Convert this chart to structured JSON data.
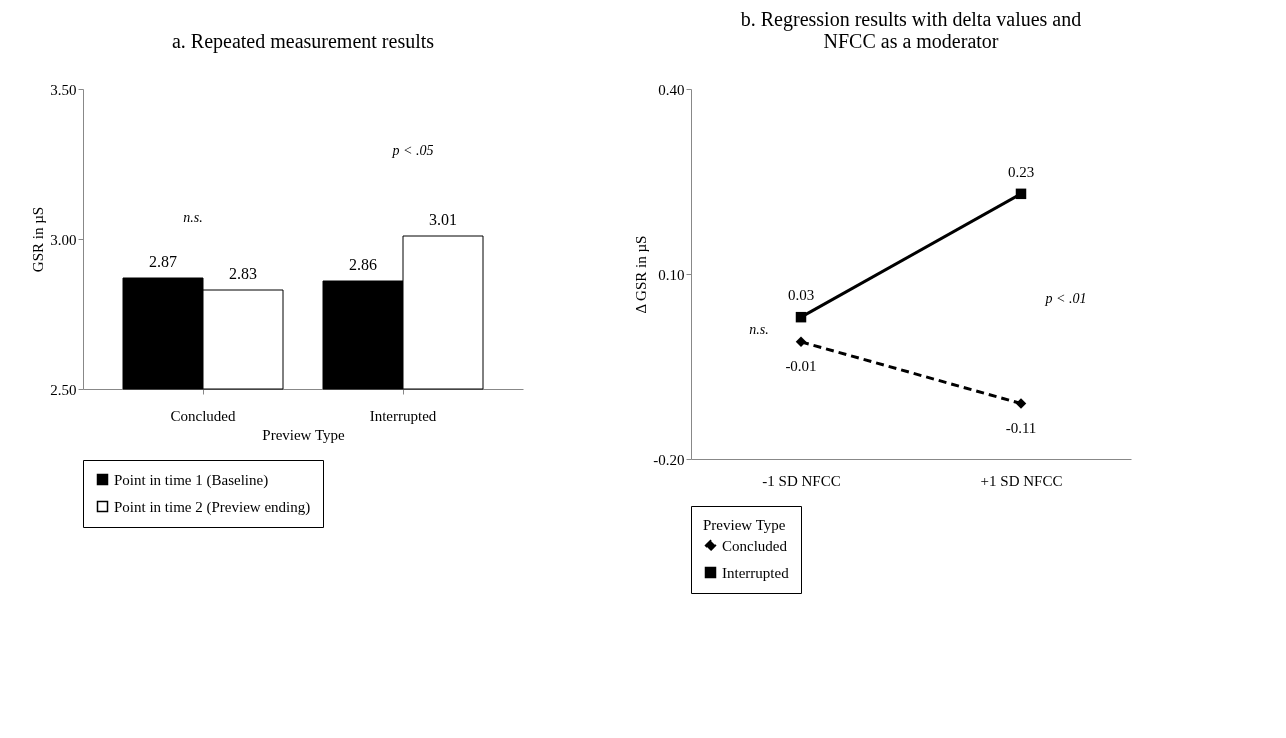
{
  "chart_data": [
    {
      "type": "bar",
      "title": "a. Repeated measurement results",
      "xlabel": "Preview Type",
      "ylabel": "GSR in µS",
      "categories": [
        "Concluded",
        "Interrupted"
      ],
      "series": [
        {
          "name": "Point in time 1 (Baseline)",
          "color": "#000000",
          "values": [
            2.87,
            2.86
          ]
        },
        {
          "name": "Point in time 2 (Preview ending)",
          "color": "#ffffff",
          "values": [
            2.83,
            3.01
          ]
        }
      ],
      "ylim": [
        2.5,
        3.5
      ],
      "yticks": [
        {
          "value": 2.5,
          "label": "2.50"
        },
        {
          "value": 3.0,
          "label": "3.00"
        },
        {
          "value": 3.5,
          "label": "3.50"
        }
      ],
      "data_labels": true,
      "grid": false,
      "legend": "bottom",
      "annotations": [
        "n.s.",
        "p < .05"
      ]
    },
    {
      "type": "line",
      "title": "b. Regression results with delta values and\nNFCC as a moderator",
      "ylabel": "Δ GSR in µS",
      "legend_title": "Preview Type",
      "categories": [
        "-1 SD NFCC",
        "+1 SD NFCC"
      ],
      "series": [
        {
          "name": "Concluded",
          "color": "#000000",
          "values": [
            -0.01,
            -0.11
          ],
          "marker": "diamond",
          "line_style": "dashed"
        },
        {
          "name": "Interrupted",
          "color": "#000000",
          "values": [
            0.03,
            0.23
          ],
          "marker": "square",
          "line_style": "solid"
        }
      ],
      "ylim": [
        -0.2,
        0.4
      ],
      "yticks": [
        {
          "value": -0.2,
          "label": "-0.20"
        },
        {
          "value": 0.1,
          "label": "0.10"
        },
        {
          "value": 0.4,
          "label": "0.40"
        }
      ],
      "data_labels": true,
      "grid": false,
      "legend": "bottom",
      "annotations": [
        "n.s.",
        "p < .01"
      ]
    }
  ]
}
